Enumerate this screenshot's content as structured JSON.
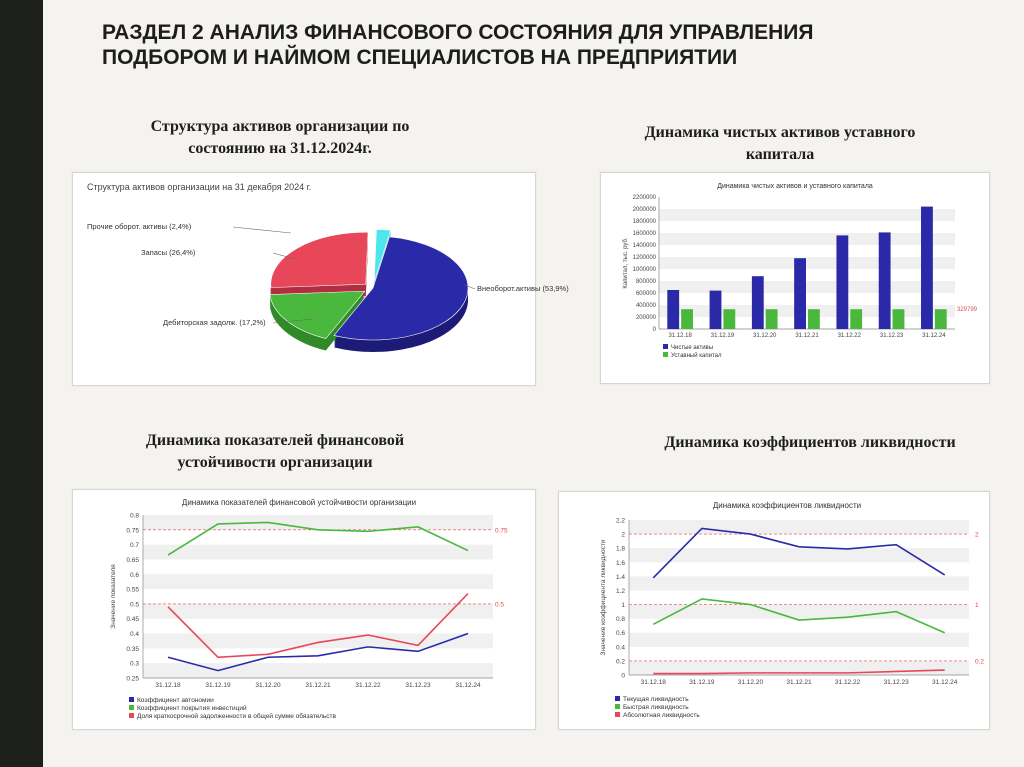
{
  "slide": {
    "title_line1": "РАЗДЕЛ 2 АНАЛИЗ ФИНАНСОВОГО СОСТОЯНИЯ ДЛЯ УПРАВЛЕНИЯ",
    "title_line2": "ПОДБОРОМ И НАЙМОМ СПЕЦИАЛИСТОВ НА ПРЕДПРИЯТИИ"
  },
  "sections": {
    "assets_line1": "Структура активов организации по",
    "assets_line2": "состоянию на 31.12.2024г.",
    "net_line1": "Динамика чистых активов уставного",
    "net_line2": "капитала",
    "fin_line1": "Динамика  показателей финансовой",
    "fin_line2": "устойчивости организации",
    "liq_line1": "Динамика коэффициентов ликвидности"
  },
  "colors": {
    "blue": "#2a2aa8",
    "green": "#49b83c",
    "red": "#e8475a",
    "cyan": "#4ee6ee",
    "ref": "#e34a4a"
  },
  "chart_data": [
    {
      "type": "pie",
      "title": "Структура активов организации на 31 декабря 2024 г.",
      "slices": [
        {
          "label": "Внеоборот.активы (53,9%)",
          "value": 53.9
        },
        {
          "label": "Дебиторская задолж. (17,2%)",
          "value": 17.2
        },
        {
          "label": "Запасы (26,4%)",
          "value": 26.4
        },
        {
          "label": "Прочие оборот. активы (2,4%)",
          "value": 2.4
        }
      ]
    },
    {
      "type": "bar",
      "title": "Динамика чистых активов и уставного капитала",
      "ylabel": "Капитал, тыс. руб.",
      "ylim": [
        0,
        2200000
      ],
      "yticks": [
        "0",
        "200000",
        "400000",
        "600000",
        "800000",
        "1000000",
        "1200000",
        "1400000",
        "1600000",
        "1800000",
        "2000000",
        "2200000"
      ],
      "categories": [
        "31.12.18",
        "31.12.19",
        "31.12.20",
        "31.12.21",
        "31.12.22",
        "31.12.23",
        "31.12.24"
      ],
      "series": [
        {
          "name": "Чистые активы",
          "values": [
            650000,
            640000,
            880000,
            1180000,
            1560000,
            1610000,
            2040000
          ]
        },
        {
          "name": "Уставный капитал",
          "values": [
            329799,
            329799,
            329799,
            329799,
            329799,
            329799,
            329799
          ]
        }
      ],
      "ref_label": "329799"
    },
    {
      "type": "line",
      "title": "Динамика показателей финансовой устойчивости организации",
      "ylabel": "Значение показателя",
      "ylim": [
        0.25,
        0.8
      ],
      "yticks": [
        "0.25",
        "0.3",
        "0.35",
        "0.4",
        "0.45",
        "0.5",
        "0.55",
        "0.6",
        "0.65",
        "0.7",
        "0.75",
        "0.8"
      ],
      "categories": [
        "31.12.18",
        "31.12.19",
        "31.12.20",
        "31.12.21",
        "31.12.22",
        "31.12.23",
        "31.12.24"
      ],
      "series": [
        {
          "name": "Коэффициент автономии",
          "values": [
            0.32,
            0.275,
            0.32,
            0.325,
            0.355,
            0.34,
            0.4
          ]
        },
        {
          "name": "Коэффициент покрытия инвестиций",
          "values": [
            0.665,
            0.77,
            0.775,
            0.75,
            0.745,
            0.76,
            0.68
          ]
        },
        {
          "name": "Доля краткосрочной задолженности в общей сумме обязательств",
          "values": [
            0.49,
            0.32,
            0.33,
            0.37,
            0.395,
            0.36,
            0.535
          ]
        }
      ],
      "refs": [
        {
          "value": 0.75,
          "label": "0.75"
        },
        {
          "value": 0.5,
          "label": "0.5"
        }
      ]
    },
    {
      "type": "line",
      "title": "Динамика коэффициентов ликвидности",
      "ylabel": "Значение коэффициента ликвидности",
      "ylim": [
        0,
        2.2
      ],
      "yticks": [
        "0",
        "0.2",
        "0.4",
        "0.6",
        "0.8",
        "1",
        "1.2",
        "1.4",
        "1.6",
        "1.8",
        "2",
        "2.2"
      ],
      "categories": [
        "31.12.18",
        "31.12.19",
        "31.12.20",
        "31.12.21",
        "31.12.22",
        "31.12.23",
        "31.12.24"
      ],
      "series": [
        {
          "name": "Текущая ликвидность",
          "values": [
            1.38,
            2.08,
            2.0,
            1.82,
            1.79,
            1.85,
            1.42
          ]
        },
        {
          "name": "Быстрая ликвидность",
          "values": [
            0.72,
            1.08,
            1.0,
            0.78,
            0.82,
            0.9,
            0.6
          ]
        },
        {
          "name": "Абсолютная ликвидность",
          "values": [
            0.02,
            0.02,
            0.03,
            0.03,
            0.03,
            0.05,
            0.07
          ]
        }
      ],
      "refs": [
        {
          "value": 2,
          "label": "2"
        },
        {
          "value": 1,
          "label": "1"
        },
        {
          "value": 0.2,
          "label": "0.2"
        }
      ]
    }
  ]
}
